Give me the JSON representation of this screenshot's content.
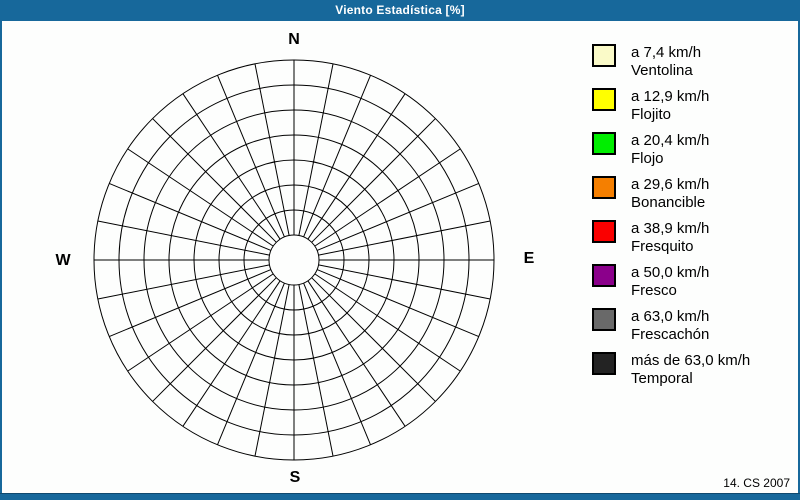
{
  "window": {
    "title": "Viento Estadística [%]",
    "credit": "14. CS 2007",
    "accent_color": "#17689B",
    "background_color": "#FDFEFD"
  },
  "compass": {
    "north": "N",
    "east": "E",
    "south": "S",
    "west": "W"
  },
  "chart_data": {
    "type": "polar",
    "subtype": "wind-rose-frequency-grid",
    "title": "Viento Estadística [%]",
    "units": "%",
    "direction_labels": [
      "N",
      "E",
      "S",
      "W"
    ],
    "num_sectors": 32,
    "num_rings": 7,
    "grid": true,
    "grid_color": "#000000",
    "series": [],
    "note": "Empty wind-rose polar grid; no wind frequency values are plotted in any sector",
    "legend_position": "right",
    "speed_bins": [
      {
        "label": "a 7,4 km/h",
        "name": "Ventolina",
        "threshold_kmh": 7.4,
        "color": "#FAFAC8"
      },
      {
        "label": "a 12,9 km/h",
        "name": "Flojito",
        "threshold_kmh": 12.9,
        "color": "#FFFF00"
      },
      {
        "label": "a 20,4 km/h",
        "name": "Flojo",
        "threshold_kmh": 20.4,
        "color": "#00EE00"
      },
      {
        "label": "a 29,6 km/h",
        "name": "Bonancible",
        "threshold_kmh": 29.6,
        "color": "#F57F00"
      },
      {
        "label": "a 38,9 km/h",
        "name": "Fresquito",
        "threshold_kmh": 38.9,
        "color": "#FA0000"
      },
      {
        "label": "a 50,0 km/h",
        "name": "Fresco",
        "threshold_kmh": 50.0,
        "color": "#8B008B"
      },
      {
        "label": "a 63,0 km/h",
        "name": "Frescachón",
        "threshold_kmh": 63.0,
        "color": "#696969"
      },
      {
        "label": "más de 63,0 km/h",
        "name": "Temporal",
        "threshold_kmh": 63.0,
        "color": "#232323"
      }
    ]
  }
}
